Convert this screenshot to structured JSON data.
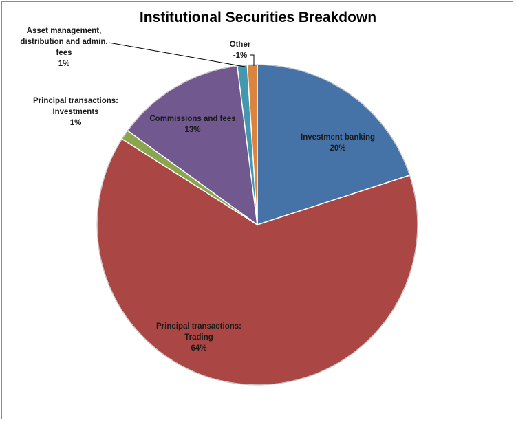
{
  "chart_data": {
    "type": "pie",
    "title": "Institutional Securities Breakdown",
    "slices": [
      {
        "label": "Investment banking",
        "label_lines": [
          "Investment banking"
        ],
        "value": 20,
        "percent_text": "20%",
        "color": "#4572A7"
      },
      {
        "label": "Principal transactions: Trading",
        "label_lines": [
          "Principal transactions:",
          "Trading"
        ],
        "value": 64,
        "percent_text": "64%",
        "color": "#AA4643"
      },
      {
        "label": "Principal transactions: Investments",
        "label_lines": [
          "Principal transactions:",
          "Investments"
        ],
        "value": 1,
        "percent_text": "1%",
        "color": "#89A54E"
      },
      {
        "label": "Commissions and fees",
        "label_lines": [
          "Commissions and fees"
        ],
        "value": 13,
        "percent_text": "13%",
        "color": "#71588F"
      },
      {
        "label": "Asset management, distribution and admin. fees",
        "label_lines": [
          "Asset management,",
          "distribution and admin.",
          "fees"
        ],
        "value": 1,
        "percent_text": "1%",
        "color": "#4198AF"
      },
      {
        "label": "Other",
        "label_lines": [
          "Other"
        ],
        "value": -1,
        "percent_text": "-1%",
        "color": "#DB843D"
      }
    ]
  }
}
